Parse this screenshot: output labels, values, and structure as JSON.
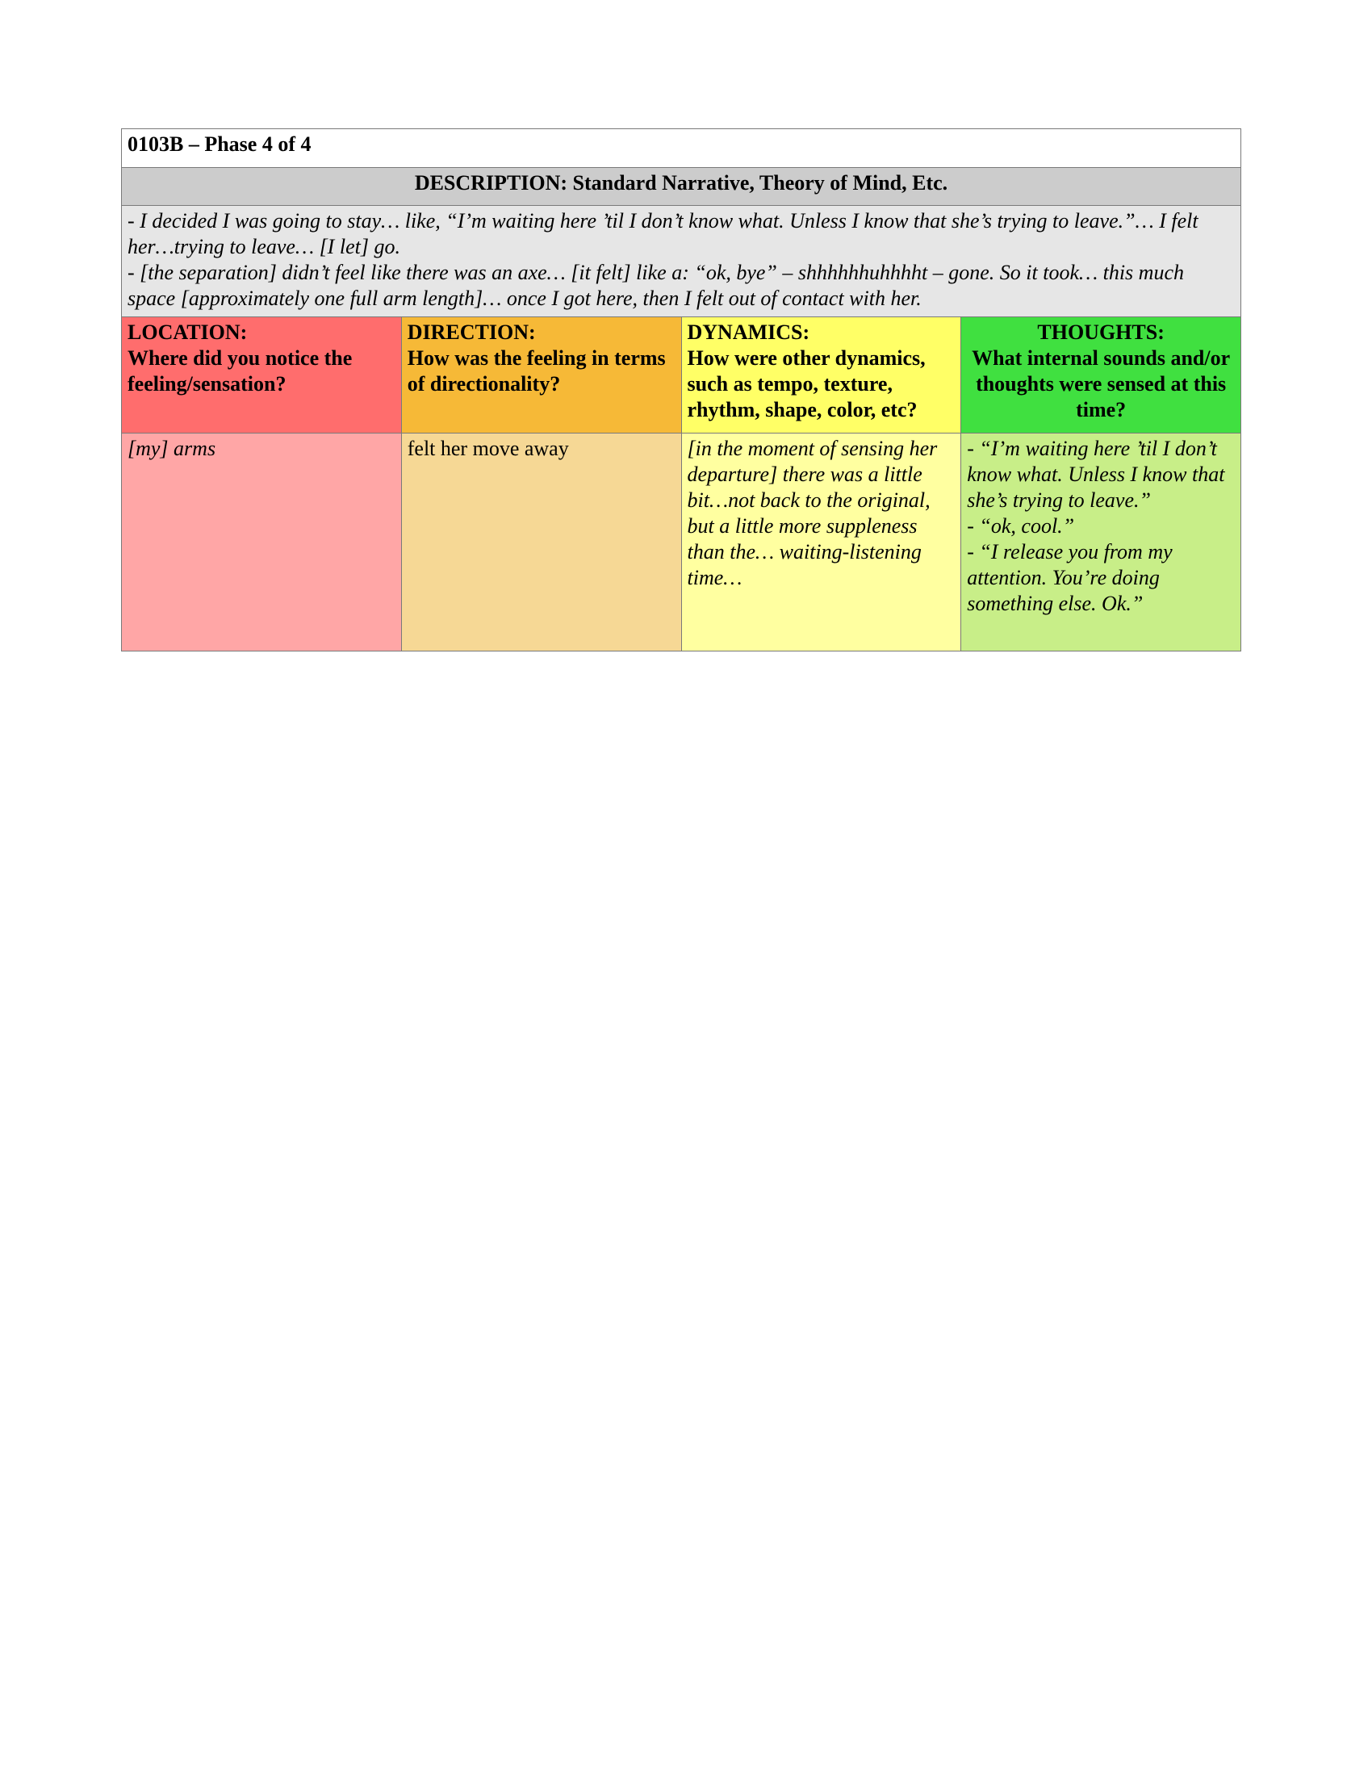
{
  "title": "0103B – Phase 4 of 4",
  "description_header": "DESCRIPTION: Standard Narrative, Theory of Mind, Etc.",
  "narrative": [
    "- I decided I was going to stay… like, “I’m waiting here ’til I don’t know what. Unless I know that she’s trying to leave.”… I felt her…trying to leave… [I let] go.",
    "- [the separation] didn’t feel like there was an axe… [it felt] like a: “ok, bye” – shhhhhhuhhhht – gone. So it took… this much space [approximately one full arm length]… once I got here, then I felt out of contact with her."
  ],
  "columns": [
    {
      "heading": "LOCATION:",
      "question": "Where did you notice the feeling/sensation?",
      "color": "#ff6d6d",
      "response_color": "#ffa6a6",
      "response": [
        "[my] arms"
      ]
    },
    {
      "heading": "DIRECTION:",
      "question": "How was the feeling in terms of directionality?",
      "color": "#f6b937",
      "response_color": "#f6d895",
      "response": [
        "felt her move away"
      ]
    },
    {
      "heading": "DYNAMICS:",
      "question": "How were other dynamics, such as tempo, texture, rhythm, shape, color, etc?",
      "color": "#ffff66",
      "response_color": "#ffffa0",
      "response": [
        "[in the moment of sensing her departure] there was a little bit…not back to the original, but a little more suppleness than the… waiting-listening time…"
      ]
    },
    {
      "heading": "THOUGHTS:",
      "question": "What internal sounds and/or thoughts were sensed at this time?",
      "color": "#40e040",
      "response_color": "#c8ee88",
      "response": [
        "- “I’m waiting here ’til I don’t know what. Unless I know that she’s trying to leave.”",
        "- “ok, cool.”",
        "- “I release you from my attention. You’re doing something else. Ok.”"
      ]
    }
  ]
}
